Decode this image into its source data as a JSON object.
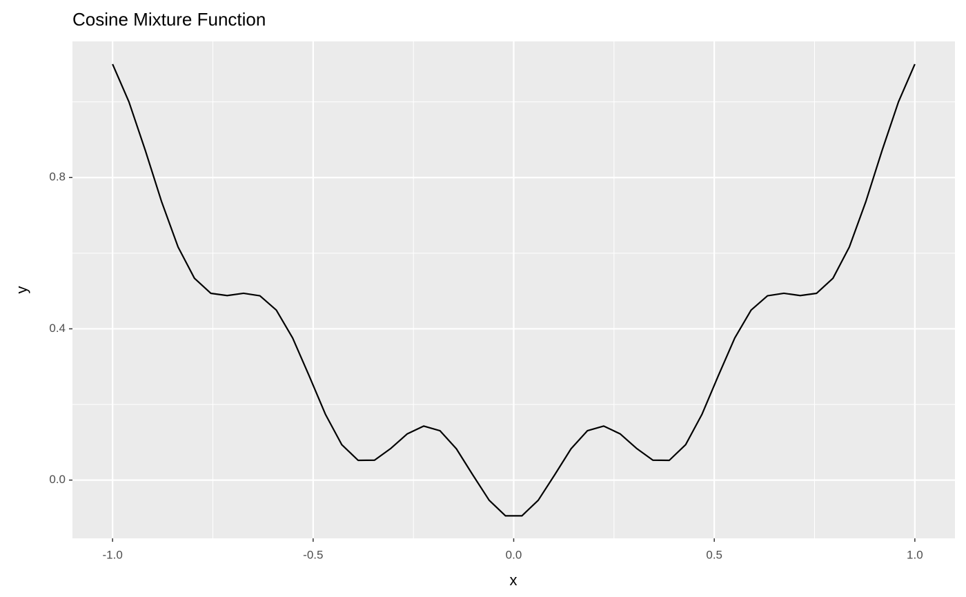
{
  "chart_data": {
    "type": "line",
    "title": "Cosine Mixture Function",
    "x_label": "x",
    "y_label": "y",
    "x": [
      -1,
      -0.9592,
      -0.9184,
      -0.8776,
      -0.8367,
      -0.7959,
      -0.7551,
      -0.7143,
      -0.6735,
      -0.6327,
      -0.5918,
      -0.551,
      -0.5102,
      -0.4694,
      -0.4286,
      -0.3878,
      -0.3469,
      -0.3061,
      -0.2653,
      -0.2245,
      -0.1837,
      -0.1429,
      -0.102,
      -0.0612,
      -0.0204,
      0.0204,
      0.0612,
      0.102,
      0.1429,
      0.1837,
      0.2245,
      0.2653,
      0.3061,
      0.3469,
      0.3878,
      0.4286,
      0.4694,
      0.5102,
      0.551,
      0.5918,
      0.6327,
      0.6735,
      0.7143,
      0.7551,
      0.7959,
      0.8367,
      0.8776,
      0.9184,
      0.9592,
      1
    ],
    "values": [
      1.1,
      1.0002,
      0.8719,
      0.7356,
      0.6164,
      0.5337,
      0.4939,
      0.4879,
      0.494,
      0.4874,
      0.4495,
      0.3755,
      0.2763,
      0.1741,
      0.0936,
      0.0522,
      0.0527,
      0.084,
      0.1223,
      0.1428,
      0.1305,
      0.0828,
      0.0137,
      -0.0533,
      -0.0945,
      -0.0945,
      -0.0533,
      0.0137,
      0.0828,
      0.1305,
      0.1428,
      0.1223,
      0.084,
      0.0527,
      0.0522,
      0.0936,
      0.1741,
      0.2763,
      0.3755,
      0.4495,
      0.4874,
      0.494,
      0.4879,
      0.4939,
      0.5337,
      0.6164,
      0.7356,
      0.8719,
      1.0002,
      1.1
    ],
    "color": "#000000",
    "xlim": [
      -1.1,
      1.1
    ],
    "ylim": [
      -0.154,
      1.16
    ],
    "xticks": [
      {
        "value": -1,
        "label": "-1.0"
      },
      -0.5,
      {
        "value": 0,
        "label": "0.0"
      },
      0.5,
      {
        "value": 1,
        "label": "1.0"
      }
    ],
    "yticks": [
      {
        "value": 0,
        "label": "0.0"
      },
      0.4,
      0.8
    ],
    "grid": true
  }
}
